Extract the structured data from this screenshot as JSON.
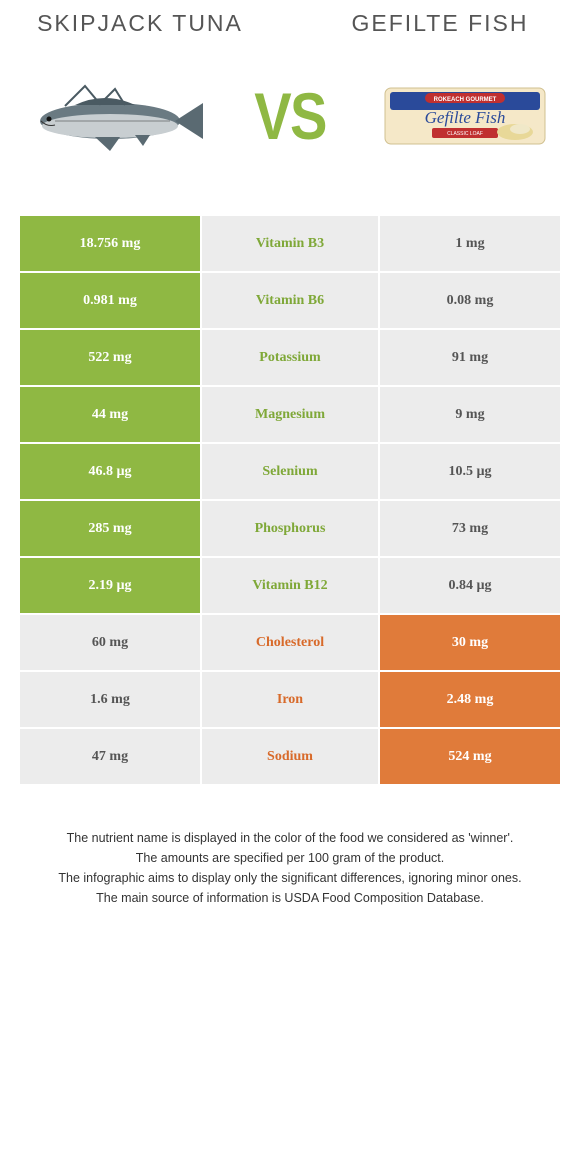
{
  "header": {
    "left_title": "SKIPJACK TUNA",
    "right_title": "GEFILTE FISH",
    "vs_label": "VS"
  },
  "colors": {
    "green": "#8fb843",
    "orange": "#e07b3a",
    "gray": "#ececec",
    "green_text": "#7fa838",
    "orange_text": "#d86a2a"
  },
  "rows": [
    {
      "left": "18.756 mg",
      "mid": "Vitamin B3",
      "right": "1 mg",
      "winner": "left"
    },
    {
      "left": "0.981 mg",
      "mid": "Vitamin B6",
      "right": "0.08 mg",
      "winner": "left"
    },
    {
      "left": "522 mg",
      "mid": "Potassium",
      "right": "91 mg",
      "winner": "left"
    },
    {
      "left": "44 mg",
      "mid": "Magnesium",
      "right": "9 mg",
      "winner": "left"
    },
    {
      "left": "46.8 µg",
      "mid": "Selenium",
      "right": "10.5 µg",
      "winner": "left"
    },
    {
      "left": "285 mg",
      "mid": "Phosphorus",
      "right": "73 mg",
      "winner": "left"
    },
    {
      "left": "2.19 µg",
      "mid": "Vitamin B12",
      "right": "0.84 µg",
      "winner": "left"
    },
    {
      "left": "60 mg",
      "mid": "Cholesterol",
      "right": "30 mg",
      "winner": "right"
    },
    {
      "left": "1.6 mg",
      "mid": "Iron",
      "right": "2.48 mg",
      "winner": "right"
    },
    {
      "left": "47 mg",
      "mid": "Sodium",
      "right": "524 mg",
      "winner": "right"
    }
  ],
  "footnotes": [
    "The nutrient name is displayed in the color of the food we considered as 'winner'.",
    "The amounts are specified per 100 gram of the product.",
    "The infographic aims to display only the significant differences, ignoring minor ones.",
    "The main source of information is USDA Food Composition Database."
  ]
}
